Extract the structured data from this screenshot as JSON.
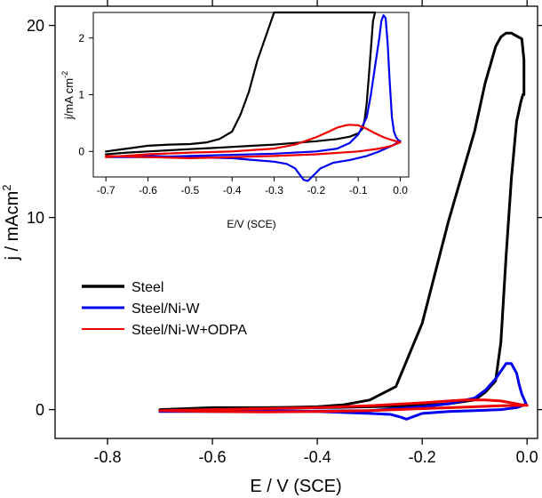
{
  "chart_data": [
    {
      "type": "line",
      "chart_role": "main",
      "xlabel": "E / V (SCE)",
      "ylabel": "j / mAcm",
      "ylabel_superscript": "2",
      "xlim": [
        -0.9,
        0.02
      ],
      "ylim": [
        -1.5,
        21
      ],
      "xticks": [
        -0.8,
        -0.6,
        -0.4,
        -0.2,
        0.0
      ],
      "xtick_labels": [
        "-0.8",
        "-0.6",
        "-0.4",
        "-0.2",
        "0.0"
      ],
      "yticks": [
        0,
        10,
        20
      ],
      "ytick_labels": [
        "0",
        "10",
        "20"
      ],
      "legend_position": "center-left",
      "series": [
        {
          "name": "Steel",
          "color": "#000000",
          "x": [
            -0.7,
            -0.6,
            -0.5,
            -0.45,
            -0.4,
            -0.35,
            -0.3,
            -0.25,
            -0.2,
            -0.15,
            -0.1,
            -0.08,
            -0.06,
            -0.05,
            -0.04,
            -0.03,
            -0.02,
            -0.012,
            -0.008,
            -0.006,
            -0.006,
            -0.01,
            -0.02,
            -0.03,
            -0.04,
            -0.05,
            -0.06,
            -0.08,
            -0.1,
            -0.15,
            -0.2,
            -0.25,
            -0.3,
            -0.35,
            -0.4,
            -0.45,
            -0.5,
            -0.55,
            -0.6,
            -0.65,
            -0.7
          ],
          "y": [
            -0.05,
            0.0,
            0.05,
            0.08,
            0.1,
            0.12,
            0.15,
            0.18,
            0.22,
            0.3,
            0.5,
            0.9,
            1.5,
            3.5,
            8.0,
            12.0,
            15.0,
            16.0,
            16.4,
            16.4,
            18.2,
            19.3,
            19.45,
            19.6,
            19.6,
            19.4,
            18.9,
            17.0,
            14.5,
            9.8,
            4.5,
            1.2,
            0.5,
            0.25,
            0.15,
            0.12,
            0.1,
            0.1,
            0.1,
            0.05,
            0.0
          ]
        },
        {
          "name": "Steel/Ni-W",
          "color": "#0000ee",
          "x": [
            -0.7,
            -0.6,
            -0.5,
            -0.4,
            -0.3,
            -0.25,
            -0.2,
            -0.15,
            -0.1,
            -0.08,
            -0.06,
            -0.05,
            -0.04,
            -0.03,
            -0.02,
            -0.015,
            -0.01,
            -0.005,
            -0.002,
            -0.01,
            -0.02,
            -0.05,
            -0.1,
            -0.15,
            -0.2,
            -0.22,
            -0.23,
            -0.24,
            -0.26,
            -0.3,
            -0.4,
            -0.5,
            -0.6,
            -0.7
          ],
          "y": [
            -0.1,
            -0.1,
            -0.1,
            -0.08,
            -0.05,
            0.05,
            0.15,
            0.3,
            0.6,
            1.0,
            1.6,
            2.0,
            2.4,
            2.4,
            1.9,
            1.3,
            0.8,
            0.5,
            0.3,
            0.2,
            0.1,
            0.0,
            -0.05,
            -0.1,
            -0.2,
            -0.4,
            -0.5,
            -0.4,
            -0.25,
            -0.2,
            -0.1,
            -0.05,
            -0.05,
            -0.1
          ]
        },
        {
          "name": "Steel/Ni-W+ODPA",
          "color": "#ee0000",
          "x": [
            -0.7,
            -0.6,
            -0.5,
            -0.4,
            -0.3,
            -0.2,
            -0.15,
            -0.12,
            -0.1,
            -0.08,
            -0.05,
            -0.03,
            -0.01,
            0.0,
            -0.05,
            -0.1,
            -0.2,
            -0.3,
            -0.4,
            -0.5,
            -0.6,
            -0.7
          ],
          "y": [
            -0.05,
            0.0,
            0.05,
            0.1,
            0.2,
            0.35,
            0.45,
            0.5,
            0.5,
            0.5,
            0.45,
            0.35,
            0.25,
            0.22,
            0.2,
            0.15,
            0.05,
            -0.05,
            -0.1,
            -0.12,
            -0.1,
            -0.05
          ]
        }
      ]
    },
    {
      "type": "line",
      "chart_role": "inset",
      "xlabel": "E/V (SCE)",
      "ylabel": "j/mA cm",
      "ylabel_superscript": "-2",
      "xlim": [
        -0.73,
        0.02
      ],
      "ylim": [
        -0.45,
        2.45
      ],
      "xticks": [
        -0.7,
        -0.6,
        -0.5,
        -0.4,
        -0.3,
        -0.2,
        -0.1,
        0.0
      ],
      "xtick_labels": [
        "-0.7",
        "-0.6",
        "-0.5",
        "-0.4",
        "-0.3",
        "-0.2",
        "-0.1",
        "0.0"
      ],
      "yticks": [
        0,
        1,
        2
      ],
      "ytick_labels": [
        "0",
        "1",
        "2"
      ],
      "series": [
        {
          "name": "Steel",
          "color": "#000000",
          "x": [
            -0.7,
            -0.65,
            -0.6,
            -0.55,
            -0.5,
            -0.45,
            -0.4,
            -0.35,
            -0.3,
            -0.25,
            -0.2,
            -0.15,
            -0.12,
            -0.1,
            -0.09,
            -0.085,
            -0.08,
            -0.075,
            -0.07,
            -0.065,
            -0.06,
            -0.3,
            -0.34,
            -0.36,
            -0.38,
            -0.4,
            -0.43,
            -0.46,
            -0.5,
            -0.55,
            -0.6,
            -0.65,
            -0.7
          ],
          "y": [
            -0.05,
            -0.02,
            0.0,
            0.02,
            0.04,
            0.06,
            0.08,
            0.1,
            0.12,
            0.15,
            0.18,
            0.22,
            0.26,
            0.32,
            0.4,
            0.55,
            0.85,
            1.3,
            1.8,
            2.3,
            2.5,
            2.5,
            1.6,
            1.05,
            0.65,
            0.35,
            0.22,
            0.16,
            0.13,
            0.12,
            0.1,
            0.05,
            0.0
          ]
        },
        {
          "name": "Steel/Ni-W",
          "color": "#0000ee",
          "x": [
            -0.7,
            -0.6,
            -0.5,
            -0.4,
            -0.3,
            -0.2,
            -0.15,
            -0.12,
            -0.1,
            -0.08,
            -0.07,
            -0.06,
            -0.05,
            -0.045,
            -0.04,
            -0.035,
            -0.03,
            -0.025,
            -0.02,
            -0.015,
            -0.01,
            -0.005,
            0.0,
            -0.02,
            -0.05,
            -0.08,
            -0.12,
            -0.16,
            -0.19,
            -0.21,
            -0.22,
            -0.23,
            -0.24,
            -0.25,
            -0.27,
            -0.3,
            -0.35,
            -0.4,
            -0.5,
            -0.6,
            -0.7
          ],
          "y": [
            -0.1,
            -0.1,
            -0.08,
            -0.06,
            -0.04,
            0.0,
            0.05,
            0.15,
            0.3,
            0.6,
            1.0,
            1.5,
            2.0,
            2.3,
            2.4,
            2.35,
            1.9,
            1.2,
            0.6,
            0.35,
            0.25,
            0.2,
            0.18,
            0.1,
            0.0,
            -0.08,
            -0.15,
            -0.2,
            -0.3,
            -0.45,
            -0.52,
            -0.5,
            -0.4,
            -0.3,
            -0.22,
            -0.18,
            -0.15,
            -0.12,
            -0.1,
            -0.08,
            -0.1
          ]
        },
        {
          "name": "Steel/Ni-W+ODPA",
          "color": "#ee0000",
          "x": [
            -0.7,
            -0.6,
            -0.5,
            -0.4,
            -0.3,
            -0.25,
            -0.2,
            -0.17,
            -0.15,
            -0.13,
            -0.12,
            -0.1,
            -0.08,
            -0.06,
            -0.04,
            -0.02,
            -0.01,
            0.0,
            -0.02,
            -0.05,
            -0.1,
            -0.2,
            -0.3,
            -0.4,
            -0.5,
            -0.6,
            -0.7
          ],
          "y": [
            -0.1,
            -0.05,
            -0.02,
            0.0,
            0.05,
            0.12,
            0.25,
            0.35,
            0.42,
            0.46,
            0.47,
            0.46,
            0.4,
            0.32,
            0.25,
            0.2,
            0.18,
            0.16,
            0.1,
            0.05,
            0.0,
            -0.05,
            -0.08,
            -0.1,
            -0.12,
            -0.1,
            -0.08
          ]
        }
      ]
    }
  ]
}
